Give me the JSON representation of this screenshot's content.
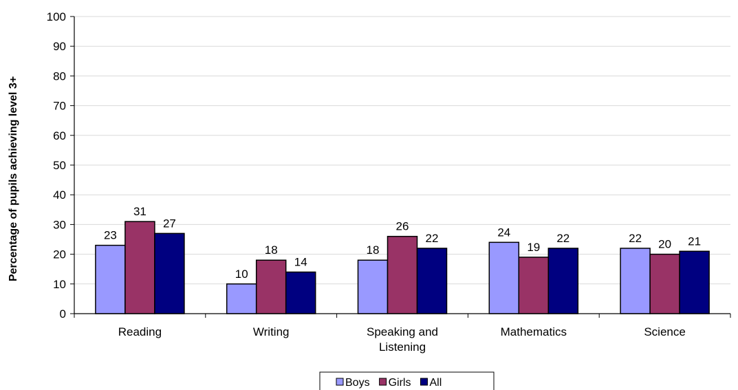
{
  "chart_data": {
    "type": "bar",
    "title": "",
    "xlabel": "",
    "ylabel": "Percentage of pupils achieving level 3+",
    "ylim": [
      0,
      100
    ],
    "yticks": [
      0,
      10,
      20,
      30,
      40,
      50,
      60,
      70,
      80,
      90,
      100
    ],
    "grid": true,
    "legend_position": "bottom",
    "categories": [
      [
        "Reading"
      ],
      [
        "Writing"
      ],
      [
        "Speaking and",
        "Listening"
      ],
      [
        "Mathematics"
      ],
      [
        "Science"
      ]
    ],
    "series": [
      {
        "name": "Boys",
        "color": "#9999ff",
        "values": [
          23,
          10,
          18,
          24,
          22
        ]
      },
      {
        "name": "Girls",
        "color": "#993366",
        "values": [
          31,
          18,
          26,
          19,
          20
        ]
      },
      {
        "name": "All",
        "color": "#000080",
        "values": [
          27,
          14,
          22,
          22,
          21
        ]
      }
    ]
  }
}
